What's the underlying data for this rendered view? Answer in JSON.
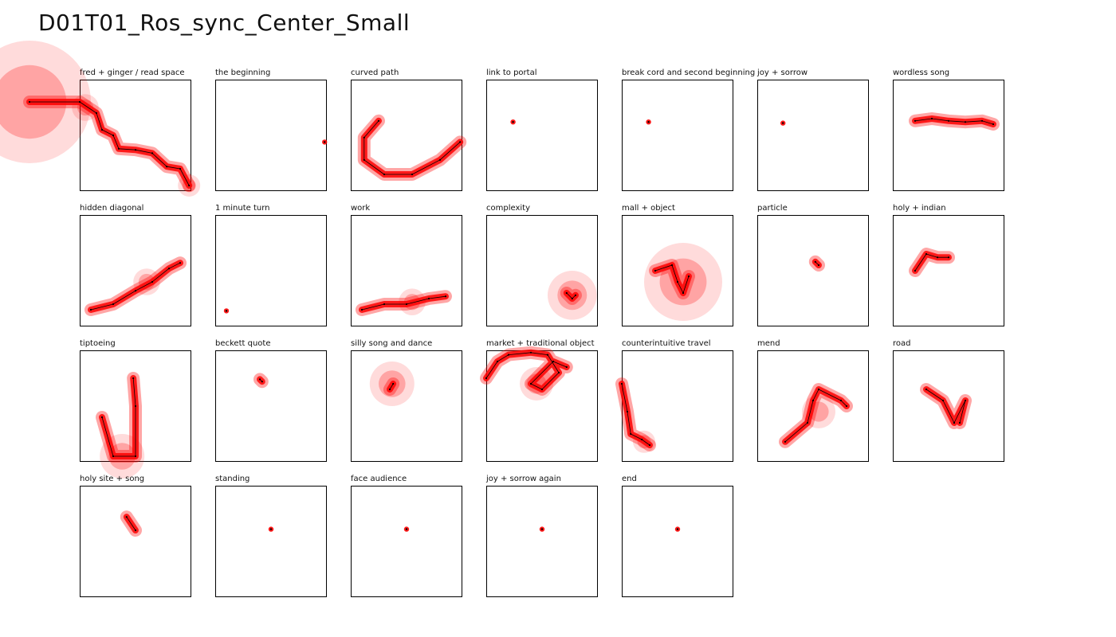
{
  "page_title": "D01T01_Ros_sync_Center_Small",
  "chart_data": {
    "type": "scatter",
    "colors": {
      "glow": "#ff0000",
      "path": "#000000",
      "frame": "#000000"
    },
    "panels": [
      {
        "label": "fred + ginger / read space",
        "points": [
          [
            -0.45,
            0.2
          ],
          [
            0,
            0.2
          ],
          [
            0.15,
            0.3
          ],
          [
            0.2,
            0.45
          ],
          [
            0.3,
            0.5
          ],
          [
            0.35,
            0.62
          ],
          [
            0.5,
            0.63
          ],
          [
            0.65,
            0.66
          ],
          [
            0.78,
            0.78
          ],
          [
            0.9,
            0.8
          ],
          [
            0.98,
            0.95
          ]
        ],
        "blobs": [
          [
            -0.45,
            0.2,
            0.55
          ],
          [
            0.05,
            0.25,
            0.12
          ],
          [
            0.98,
            0.95,
            0.1
          ]
        ]
      },
      {
        "label": "the beginning",
        "points": [
          [
            0.98,
            0.56
          ]
        ],
        "blobs": []
      },
      {
        "label": "curved path",
        "points": [
          [
            0.25,
            0.37
          ],
          [
            0.12,
            0.52
          ],
          [
            0.12,
            0.72
          ],
          [
            0.3,
            0.85
          ],
          [
            0.55,
            0.85
          ],
          [
            0.8,
            0.72
          ],
          [
            0.98,
            0.56
          ]
        ],
        "blobs": []
      },
      {
        "label": "link to portal",
        "points": [
          [
            0.24,
            0.38
          ]
        ],
        "blobs": []
      },
      {
        "label": "break cord and second beginning",
        "points": [
          [
            0.24,
            0.38
          ]
        ],
        "blobs": []
      },
      {
        "label": "joy + sorrow",
        "points": [
          [
            0.23,
            0.39
          ]
        ],
        "blobs": []
      },
      {
        "label": "wordless song",
        "points": [
          [
            0.2,
            0.37
          ],
          [
            0.35,
            0.35
          ],
          [
            0.5,
            0.37
          ],
          [
            0.65,
            0.38
          ],
          [
            0.8,
            0.37
          ],
          [
            0.9,
            0.4
          ]
        ],
        "blobs": []
      },
      {
        "label": "hidden diagonal",
        "points": [
          [
            0.1,
            0.85
          ],
          [
            0.3,
            0.8
          ],
          [
            0.5,
            0.68
          ],
          [
            0.65,
            0.6
          ],
          [
            0.8,
            0.48
          ],
          [
            0.9,
            0.43
          ]
        ],
        "blobs": [
          [
            0.6,
            0.6,
            0.12
          ]
        ]
      },
      {
        "label": "1 minute turn",
        "points": [
          [
            0.1,
            0.86
          ]
        ],
        "blobs": []
      },
      {
        "label": "work",
        "points": [
          [
            0.1,
            0.85
          ],
          [
            0.3,
            0.8
          ],
          [
            0.5,
            0.8
          ],
          [
            0.7,
            0.75
          ],
          [
            0.85,
            0.73
          ]
        ],
        "blobs": [
          [
            0.55,
            0.78,
            0.12
          ]
        ]
      },
      {
        "label": "complexity",
        "points": [
          [
            0.72,
            0.7
          ],
          [
            0.77,
            0.75
          ],
          [
            0.8,
            0.72
          ]
        ],
        "blobs": [
          [
            0.77,
            0.72,
            0.22
          ]
        ]
      },
      {
        "label": "mall + object",
        "points": [
          [
            0.3,
            0.5
          ],
          [
            0.45,
            0.45
          ],
          [
            0.5,
            0.6
          ],
          [
            0.55,
            0.7
          ],
          [
            0.6,
            0.55
          ]
        ],
        "blobs": [
          [
            0.55,
            0.6,
            0.35
          ]
        ]
      },
      {
        "label": "particle",
        "points": [
          [
            0.52,
            0.42
          ],
          [
            0.55,
            0.45
          ]
        ],
        "blobs": []
      },
      {
        "label": "holy + indian",
        "points": [
          [
            0.2,
            0.5
          ],
          [
            0.3,
            0.35
          ],
          [
            0.4,
            0.38
          ],
          [
            0.5,
            0.38
          ]
        ],
        "blobs": []
      },
      {
        "label": "tiptoeing",
        "points": [
          [
            0.48,
            0.25
          ],
          [
            0.5,
            0.5
          ],
          [
            0.5,
            0.95
          ],
          [
            0.3,
            0.95
          ],
          [
            0.2,
            0.6
          ]
        ],
        "blobs": [
          [
            0.38,
            0.95,
            0.2
          ]
        ]
      },
      {
        "label": "beckett quote",
        "points": [
          [
            0.4,
            0.26
          ],
          [
            0.42,
            0.28
          ]
        ],
        "blobs": []
      },
      {
        "label": "silly song and dance",
        "points": [
          [
            0.35,
            0.35
          ],
          [
            0.38,
            0.3
          ]
        ],
        "blobs": [
          [
            0.37,
            0.3,
            0.2
          ]
        ]
      },
      {
        "label": "market + traditional object",
        "points": [
          [
            0,
            0.25
          ],
          [
            0.1,
            0.1
          ],
          [
            0.2,
            0.04
          ],
          [
            0.4,
            0.02
          ],
          [
            0.55,
            0.04
          ],
          [
            0.65,
            0.2
          ],
          [
            0.5,
            0.35
          ],
          [
            0.4,
            0.3
          ],
          [
            0.6,
            0.1
          ],
          [
            0.72,
            0.15
          ]
        ],
        "blobs": [
          [
            0.45,
            0.3,
            0.15
          ]
        ]
      },
      {
        "label": "counterintuitive travel",
        "points": [
          [
            0,
            0.3
          ],
          [
            0.05,
            0.55
          ],
          [
            0.08,
            0.75
          ],
          [
            0.18,
            0.8
          ],
          [
            0.25,
            0.85
          ]
        ],
        "blobs": [
          [
            0.2,
            0.82,
            0.1
          ]
        ]
      },
      {
        "label": "mend",
        "points": [
          [
            0.25,
            0.82
          ],
          [
            0.45,
            0.65
          ],
          [
            0.5,
            0.45
          ],
          [
            0.55,
            0.35
          ],
          [
            0.75,
            0.45
          ],
          [
            0.8,
            0.5
          ]
        ],
        "blobs": [
          [
            0.55,
            0.55,
            0.15
          ]
        ]
      },
      {
        "label": "road",
        "points": [
          [
            0.3,
            0.35
          ],
          [
            0.45,
            0.45
          ],
          [
            0.55,
            0.65
          ],
          [
            0.65,
            0.45
          ],
          [
            0.6,
            0.65
          ]
        ],
        "blobs": []
      },
      {
        "label": "holy site + song",
        "points": [
          [
            0.42,
            0.28
          ],
          [
            0.5,
            0.4
          ]
        ],
        "blobs": []
      },
      {
        "label": "standing",
        "points": [
          [
            0.5,
            0.39
          ]
        ],
        "blobs": []
      },
      {
        "label": "face audience",
        "points": [
          [
            0.5,
            0.39
          ]
        ],
        "blobs": []
      },
      {
        "label": "joy + sorrow again",
        "points": [
          [
            0.5,
            0.39
          ]
        ],
        "blobs": []
      },
      {
        "label": "end",
        "points": [
          [
            0.5,
            0.39
          ]
        ],
        "blobs": []
      }
    ]
  }
}
